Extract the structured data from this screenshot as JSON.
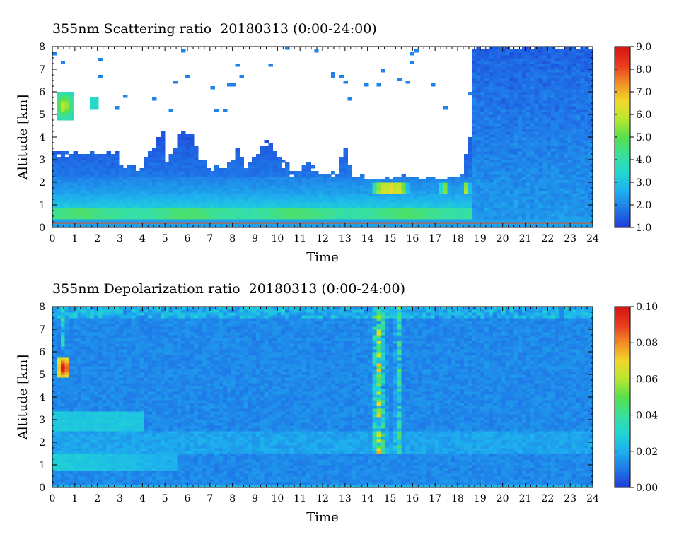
{
  "chart_data": [
    {
      "type": "heatmap",
      "title": "355nm Scattering ratio  20180313 (0:00-24:00)",
      "xlabel": "Time",
      "ylabel": "Altitude [km]",
      "xlim": [
        0,
        24
      ],
      "ylim": [
        0,
        8
      ],
      "x_ticks": [
        "0",
        "1",
        "2",
        "3",
        "4",
        "5",
        "6",
        "7",
        "8",
        "9",
        "10",
        "11",
        "12",
        "13",
        "14",
        "15",
        "16",
        "17",
        "18",
        "19",
        "20",
        "21",
        "22",
        "23",
        "24"
      ],
      "y_ticks": [
        "0",
        "1",
        "2",
        "3",
        "4",
        "5",
        "6",
        "7",
        "8"
      ],
      "colorbar": {
        "min": 1.0,
        "max": 9.0,
        "ticks": [
          "1.0",
          "2.0",
          "3.0",
          "4.0",
          "5.0",
          "6.0",
          "7.0",
          "8.0",
          "9.0"
        ]
      },
      "missing_color": "#ffffff",
      "colormap": [
        "#1e3cd8",
        "#1f78e8",
        "#1eb0ee",
        "#20d6d2",
        "#3ae09a",
        "#58e04a",
        "#b8e630",
        "#f2d72a",
        "#f28c28",
        "#e83a1c",
        "#d81414"
      ]
    },
    {
      "type": "heatmap",
      "title": "355nm Depolarization ratio  20180313 (0:00-24:00)",
      "xlabel": "Time",
      "ylabel": "Altitude [km]",
      "xlim": [
        0,
        24
      ],
      "ylim": [
        0,
        8
      ],
      "x_ticks": [
        "0",
        "1",
        "2",
        "3",
        "4",
        "5",
        "6",
        "7",
        "8",
        "9",
        "10",
        "11",
        "12",
        "13",
        "14",
        "15",
        "16",
        "17",
        "18",
        "19",
        "20",
        "21",
        "22",
        "23",
        "24"
      ],
      "y_ticks": [
        "0",
        "1",
        "2",
        "3",
        "4",
        "5",
        "6",
        "7",
        "8"
      ],
      "colorbar": {
        "min": 0.0,
        "max": 0.1,
        "ticks": [
          "0.00",
          "0.02",
          "0.04",
          "0.06",
          "0.08",
          "0.10"
        ]
      },
      "colormap": [
        "#1e3cd8",
        "#1f78e8",
        "#1eb0ee",
        "#20d6d2",
        "#3ae09a",
        "#58e04a",
        "#b8e630",
        "#f2d72a",
        "#f28c28",
        "#e83a1c",
        "#d81414"
      ]
    }
  ]
}
